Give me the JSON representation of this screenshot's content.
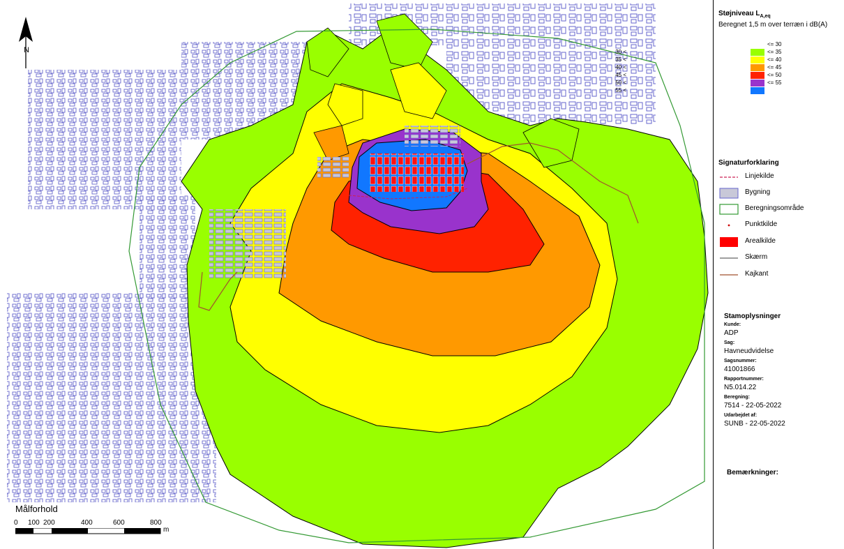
{
  "legend": {
    "title_main": "Støjniveau L",
    "title_sub": "A,eq",
    "subtitle": "Beregnet 1,5 m over terræn i dB(A)",
    "levels": [
      {
        "low": "",
        "high": "<= 30",
        "color": "#ffffff"
      },
      {
        "low": "30 <",
        "high": "<= 35",
        "color": "#99ff00"
      },
      {
        "low": "35 <",
        "high": "<= 40",
        "color": "#ffff00"
      },
      {
        "low": "40 <",
        "high": "<= 45",
        "color": "#ff9900"
      },
      {
        "low": "45 <",
        "high": "<= 50",
        "color": "#ff2200"
      },
      {
        "low": "50 <",
        "high": "<= 55",
        "color": "#9933cc"
      },
      {
        "low": "55 <",
        "high": "",
        "color": "#1177ff"
      }
    ],
    "symbols_title": "Signaturforklaring",
    "symbols": [
      {
        "label": "Linjekilde",
        "kind": "dash-line",
        "color": "#cc2255"
      },
      {
        "label": "Bygning",
        "kind": "box",
        "color": "#c8c8d8"
      },
      {
        "label": "Beregningsområde",
        "kind": "outline-box",
        "color": "#339933"
      },
      {
        "label": "Punktkilde",
        "kind": "dot",
        "color": "#cc0000"
      },
      {
        "label": "Arealkilde",
        "kind": "filled-box",
        "color": "#ff0000"
      },
      {
        "label": "Skærm",
        "kind": "line",
        "color": "#666666"
      },
      {
        "label": "Kajkant",
        "kind": "line",
        "color": "#a0522d"
      }
    ]
  },
  "info": {
    "title": "Stamoplysninger",
    "fields": [
      {
        "key": "Kunde:",
        "value": "ADP"
      },
      {
        "key": "Sag:",
        "value": "Havneudvidelse"
      },
      {
        "key": "Sagsnummer:",
        "value": "41001866"
      },
      {
        "key": "Rapportnummer:",
        "value": "N5.014.22"
      },
      {
        "key": "Beregning:",
        "value": "7514 -  22-05-2022"
      },
      {
        "key": "Udarbejdet af:",
        "value": "SUNB - 22-05-2022"
      }
    ],
    "remarks_label": "Bemærkninger:"
  },
  "map": {
    "north_label": "N",
    "scale_title": "Målforhold",
    "scale_ticks": [
      "0",
      "100",
      "200",
      "400",
      "600",
      "800"
    ],
    "scale_unit": "m",
    "building_color": "#6666cc",
    "boundary_color": "#339933",
    "quay_color": "#a0522d"
  }
}
